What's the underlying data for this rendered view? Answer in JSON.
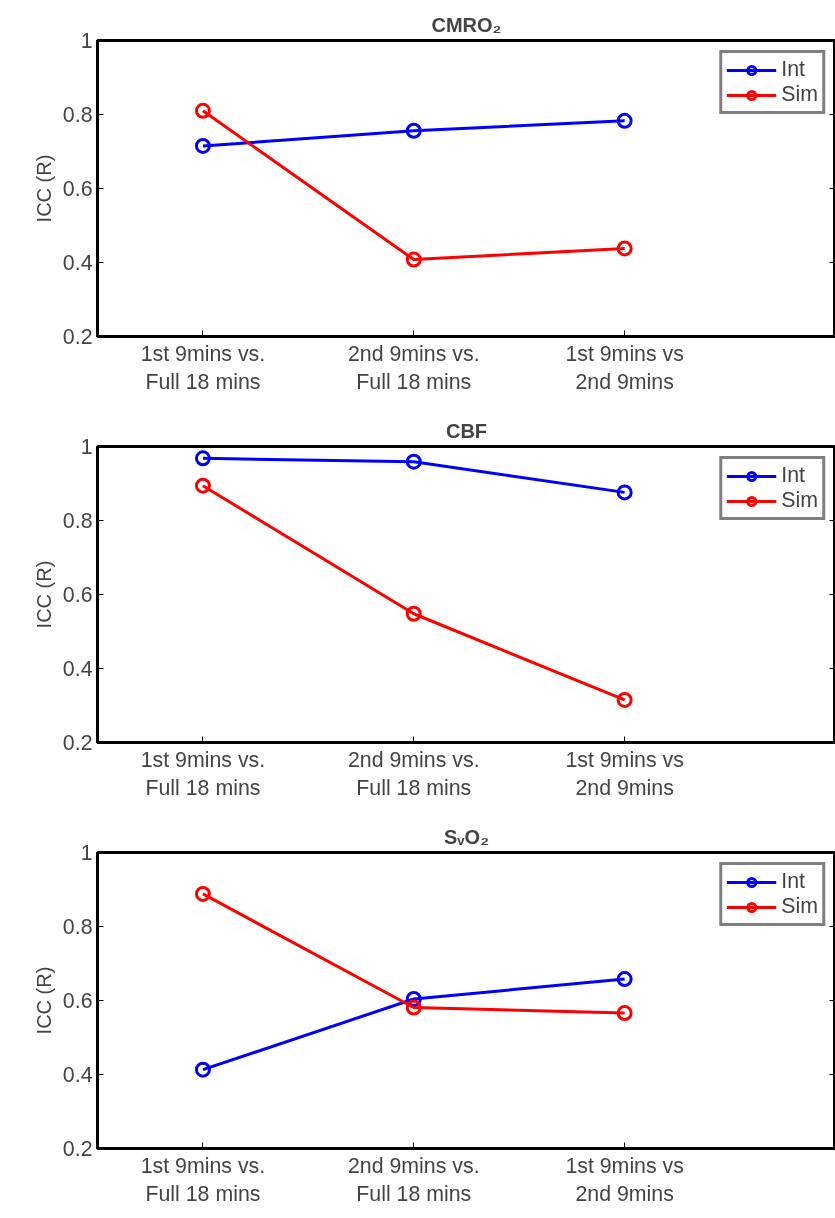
{
  "chart_data": [
    {
      "type": "line",
      "title": "CMRO₂",
      "ylabel": "ICC (R)",
      "categories": [
        "1st 9mins vs.\nFull 18 mins",
        "2nd 9mins vs.\nFull 18 mins",
        "1st 9mins vs\n2nd 9mins"
      ],
      "ylim": [
        0.2,
        1
      ],
      "yticks": [
        0.2,
        0.4,
        0.6,
        0.8,
        1
      ],
      "grid": false,
      "legend": "top right",
      "marker": "circle",
      "line_style": "solid",
      "series": [
        {
          "name": "Int",
          "color": "#0000ff",
          "values": [
            0.715,
            0.756,
            0.783
          ]
        },
        {
          "name": "Sim",
          "color": "#ff0000",
          "values": [
            0.81,
            0.408,
            0.438
          ]
        }
      ]
    },
    {
      "type": "line",
      "title": "CBF",
      "ylabel": "ICC (R)",
      "categories": [
        "1st 9mins vs.\nFull 18 mins",
        "2nd 9mins vs.\nFull 18 mins",
        "1st 9mins vs\n2nd 9mins"
      ],
      "ylim": [
        0.2,
        1
      ],
      "yticks": [
        0.2,
        0.4,
        0.6,
        0.8,
        1
      ],
      "grid": false,
      "legend": "top right",
      "marker": "circle",
      "line_style": "solid",
      "series": [
        {
          "name": "Int",
          "color": "#0000ff",
          "values": [
            0.968,
            0.959,
            0.876
          ]
        },
        {
          "name": "Sim",
          "color": "#ff0000",
          "values": [
            0.894,
            0.548,
            0.315
          ]
        }
      ]
    },
    {
      "type": "line",
      "title": "SᵥO₂",
      "ylabel": "ICC (R)",
      "categories": [
        "1st 9mins vs.\nFull 18 mins",
        "2nd 9mins vs.\nFull 18 mins",
        "1st 9mins vs\n2nd 9mins"
      ],
      "ylim": [
        0.2,
        1
      ],
      "yticks": [
        0.2,
        0.4,
        0.6,
        0.8,
        1
      ],
      "grid": false,
      "legend": "top right",
      "marker": "circle",
      "line_style": "solid",
      "series": [
        {
          "name": "Int",
          "color": "#0000ff",
          "values": [
            0.413,
            0.604,
            0.658
          ]
        },
        {
          "name": "Sim",
          "color": "#ff0000",
          "values": [
            0.888,
            0.581,
            0.566
          ]
        }
      ]
    }
  ]
}
